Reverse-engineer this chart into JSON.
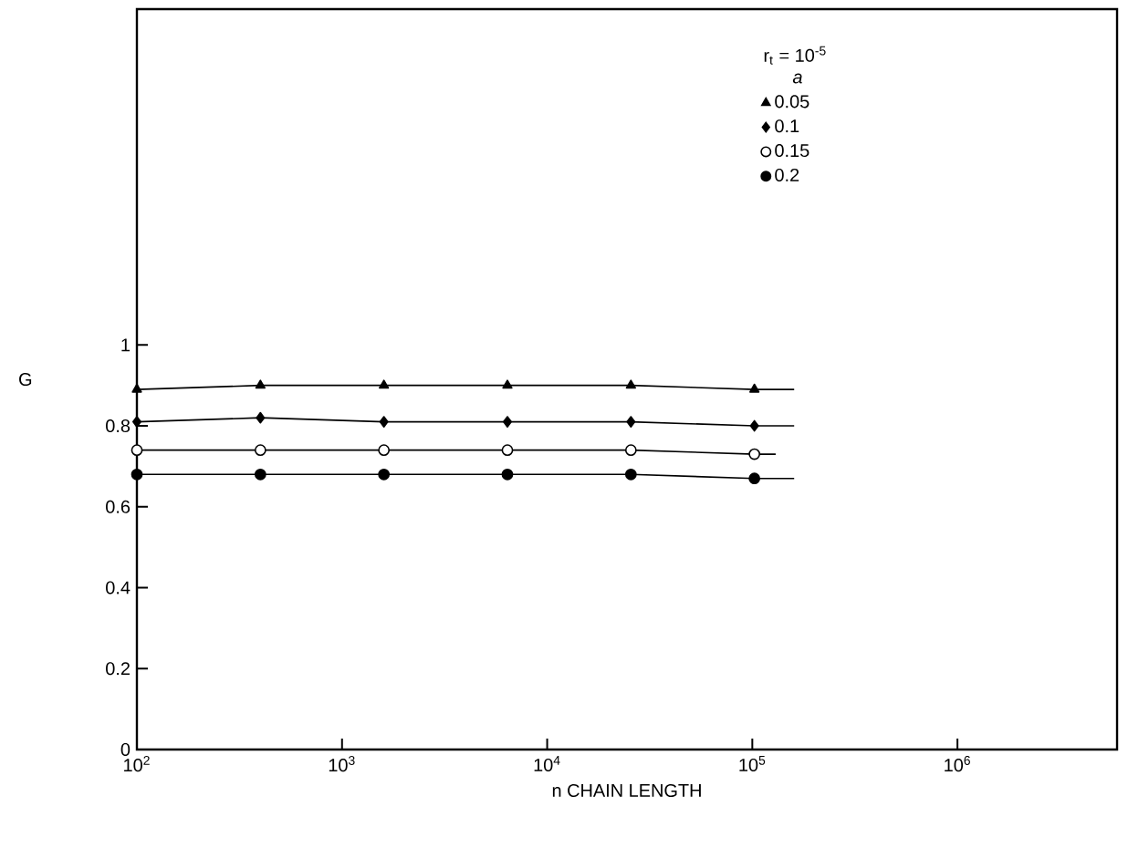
{
  "chart_data": {
    "type": "line",
    "xlabel": "n CHAIN LENGTH",
    "ylabel": "G",
    "legend_title": "r$_{t}$ = 10$^{-5}$",
    "annotations": [
      "a"
    ],
    "log": "x",
    "xlim": [
      100,
      6000000
    ],
    "ylim": [
      0,
      1.83
    ],
    "xticks": [
      {
        "value": 100,
        "label": "10$^{2}$"
      },
      {
        "value": 1000,
        "label": "10$^{3}$"
      },
      {
        "value": 10000,
        "label": "10$^{4}$"
      },
      {
        "value": 100000,
        "label": "10$^{5}$"
      },
      {
        "value": 1000000,
        "label": "10$^{6}$"
      }
    ],
    "yticks": [
      0,
      0.2,
      0.4,
      0.6,
      0.8,
      1
    ],
    "grid": false,
    "legend": "top right",
    "series": [
      {
        "name": "0.05",
        "color": "#000000",
        "marker": "triangle",
        "x": [
          100,
          400,
          1600,
          6400,
          25600,
          102400,
          160000
        ],
        "values": [
          0.89,
          0.9,
          0.9,
          0.9,
          0.9,
          0.89,
          0.89
        ]
      },
      {
        "name": "0.1",
        "color": "#000000",
        "marker": "diamond",
        "x": [
          100,
          400,
          1600,
          6400,
          25600,
          102400,
          160000
        ],
        "values": [
          0.81,
          0.82,
          0.81,
          0.81,
          0.81,
          0.8,
          0.8
        ]
      },
      {
        "name": "0.15",
        "color": "#ffffff",
        "marker": "circle",
        "x": [
          100,
          400,
          1600,
          6400,
          25600,
          102400,
          130000
        ],
        "values": [
          0.74,
          0.74,
          0.74,
          0.74,
          0.74,
          0.73,
          0.73
        ]
      },
      {
        "name": "0.2",
        "color": "#000000",
        "marker": "circle",
        "x": [
          100,
          400,
          1600,
          6400,
          25600,
          102400,
          160000
        ],
        "values": [
          0.68,
          0.68,
          0.68,
          0.68,
          0.68,
          0.67,
          0.67
        ]
      }
    ]
  }
}
